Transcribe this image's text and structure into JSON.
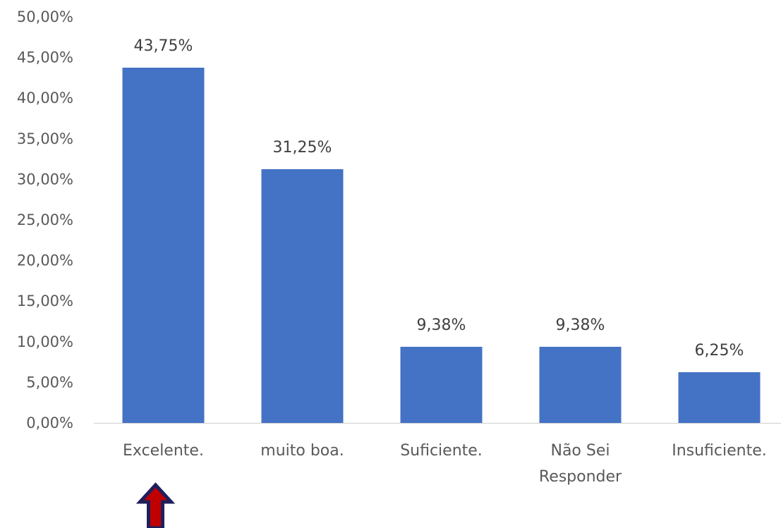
{
  "chart_data": {
    "type": "bar",
    "categories": [
      "Excelente.",
      "muito boa.",
      "Suficiente.",
      "Não Sei Responder",
      "Insuficiente."
    ],
    "category_lines": [
      [
        "Excelente."
      ],
      [
        "muito boa."
      ],
      [
        "Suficiente."
      ],
      [
        "Não Sei",
        "Responder"
      ],
      [
        "Insuficiente."
      ]
    ],
    "values": [
      43.75,
      31.25,
      9.38,
      9.38,
      6.25
    ],
    "value_labels": [
      "43,75%",
      "31,25%",
      "9,38%",
      "9,38%",
      "6,25%"
    ],
    "ylim": [
      0,
      50
    ],
    "y_ticks": [
      0,
      5,
      10,
      15,
      20,
      25,
      30,
      35,
      40,
      45,
      50
    ],
    "y_tick_labels": [
      "0,00%",
      "5,00%",
      "10,00%",
      "15,00%",
      "20,00%",
      "25,00%",
      "30,00%",
      "35,00%",
      "40,00%",
      "45,00%",
      "50,00%"
    ],
    "grid": false,
    "legend": "none",
    "bar_color": "#4472C4",
    "axis_color": "#D9D9D9",
    "highlight_arrow": {
      "category_index": 0,
      "direction": "up",
      "fill_color": "#C00000",
      "outline_color": "#1F1F5C",
      "icon": "up-arrow-icon"
    }
  }
}
